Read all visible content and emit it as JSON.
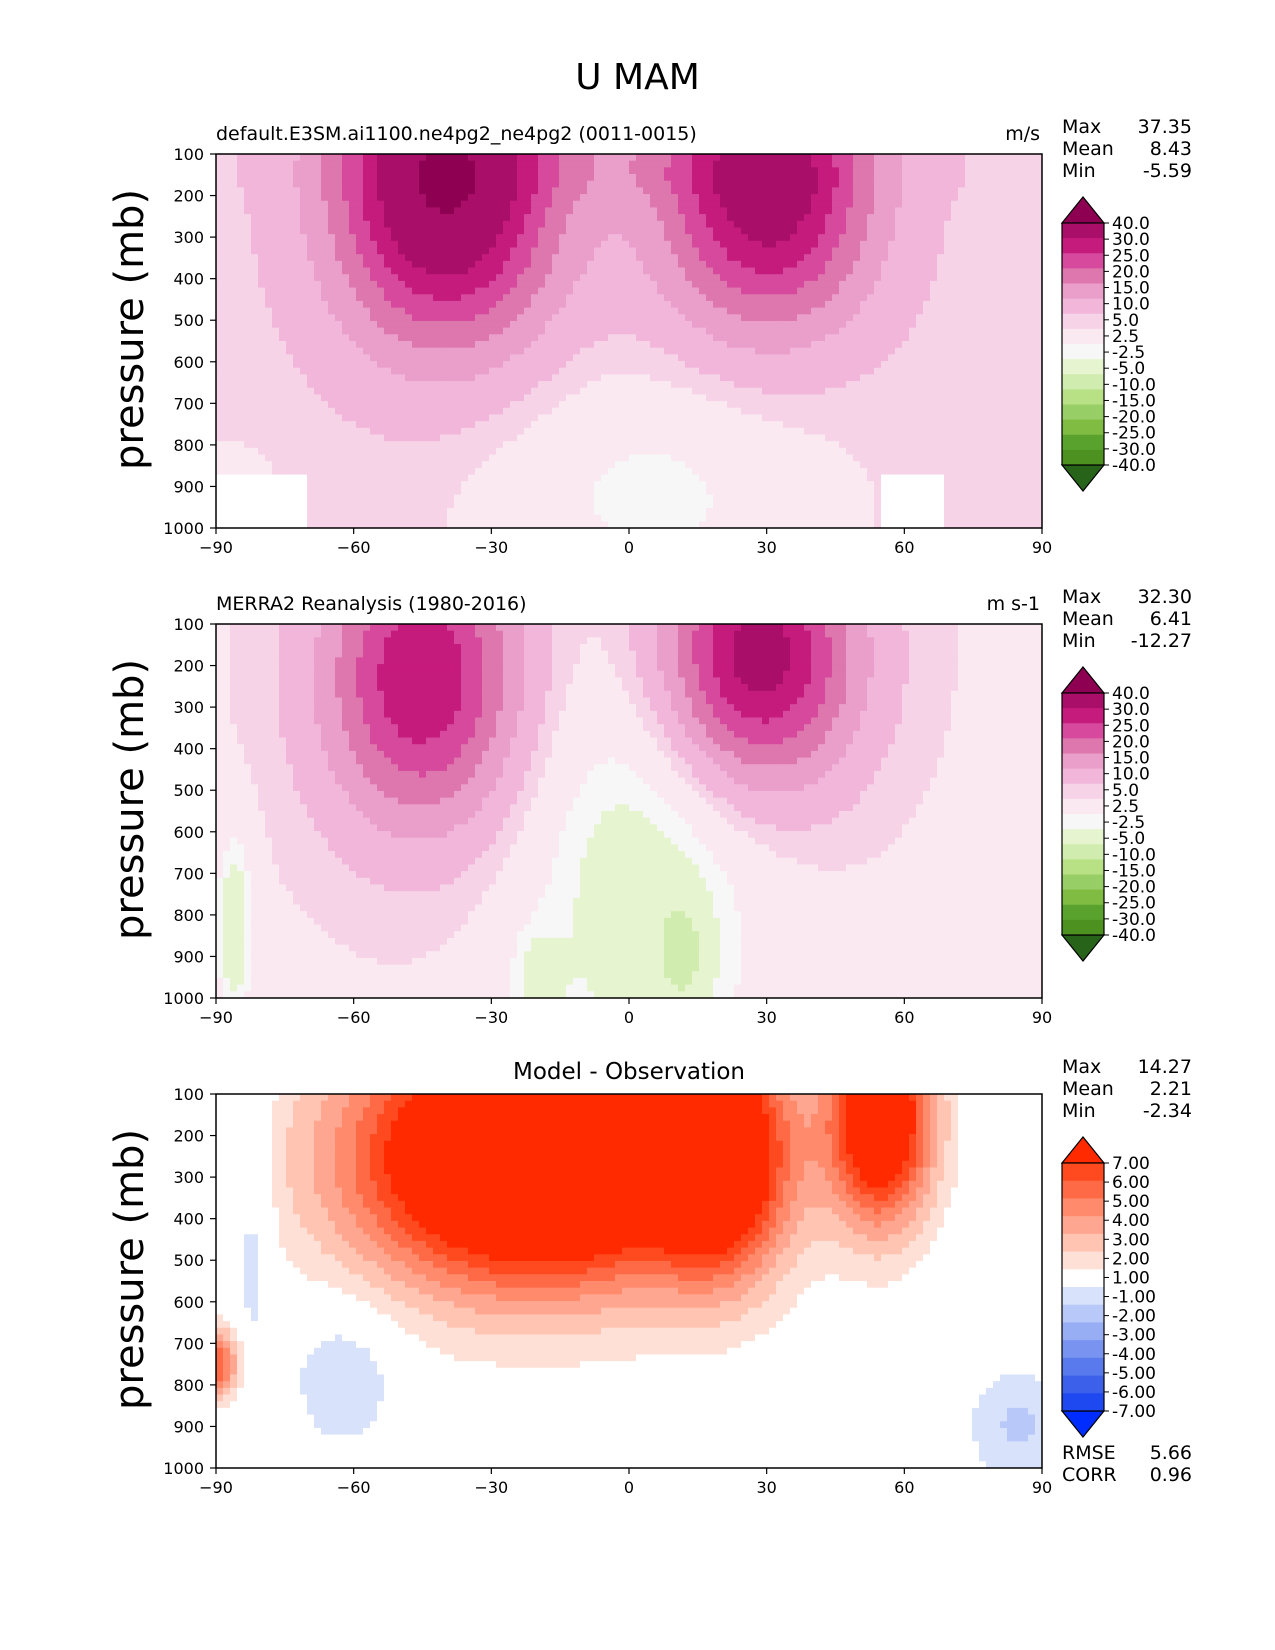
{
  "figure": {
    "title": "U MAM"
  },
  "chart_data": [
    {
      "type": "contour",
      "title_left": "default.E3SM.ai1100.ne4pg2_ne4pg2 (0011-0015)",
      "title_center": "",
      "title_right": "m/s",
      "ylabel": "pressure (mb)",
      "x_ticks": [
        "−90",
        "−60",
        "−30",
        "0",
        "30",
        "60",
        "90"
      ],
      "y_ticks": [
        "100",
        "200",
        "300",
        "400",
        "500",
        "600",
        "700",
        "800",
        "900",
        "1000"
      ],
      "xlim": [
        -90,
        90
      ],
      "ylim": [
        1000,
        100
      ],
      "stats": [
        {
          "label": "Max",
          "value": "37.35"
        },
        {
          "label": "Mean",
          "value": "8.43"
        },
        {
          "label": "Min",
          "value": "-5.59"
        }
      ],
      "colorbar": {
        "labels": [
          "40.0",
          "30.0",
          "25.0",
          "20.0",
          "15.0",
          "10.0",
          "5.0",
          "2.5",
          "-2.5",
          "-5.0",
          "-10.0",
          "-15.0",
          "-20.0",
          "-25.0",
          "-30.0",
          "-40.0"
        ],
        "colors": [
          "#8e0152",
          "#a90f68",
          "#c51b7d",
          "#d6499c",
          "#de77ae",
          "#ea9fcb",
          "#f1b6da",
          "#f7d3e8",
          "#fbe9f2",
          "#f7f7f7",
          "#e6f5d0",
          "#d0ecae",
          "#b8e186",
          "#97ce66",
          "#7fbc41",
          "#5aa22e",
          "#4d9221",
          "#276419"
        ]
      },
      "features": [
        {
          "lat": -40,
          "p": 190,
          "value": 37.35
        },
        {
          "lat": 30,
          "p": 190,
          "value": 31
        }
      ]
    },
    {
      "type": "contour",
      "title_left": "MERRA2 Reanalysis (1980-2016)",
      "title_center": "",
      "title_right": "m s-1",
      "ylabel": "pressure (mb)",
      "x_ticks": [
        "−90",
        "−60",
        "−30",
        "0",
        "30",
        "60",
        "90"
      ],
      "y_ticks": [
        "100",
        "200",
        "300",
        "400",
        "500",
        "600",
        "700",
        "800",
        "900",
        "1000"
      ],
      "xlim": [
        -90,
        90
      ],
      "ylim": [
        1000,
        100
      ],
      "stats": [
        {
          "label": "Max",
          "value": "32.30"
        },
        {
          "label": "Mean",
          "value": "6.41"
        },
        {
          "label": "Min",
          "value": "-12.27"
        }
      ],
      "colorbar": {
        "labels": [
          "40.0",
          "30.0",
          "25.0",
          "20.0",
          "15.0",
          "10.0",
          "5.0",
          "2.5",
          "-2.5",
          "-5.0",
          "-10.0",
          "-15.0",
          "-20.0",
          "-25.0",
          "-30.0",
          "-40.0"
        ],
        "colors": [
          "#8e0152",
          "#a90f68",
          "#c51b7d",
          "#d6499c",
          "#de77ae",
          "#ea9fcb",
          "#f1b6da",
          "#f7d3e8",
          "#fbe9f2",
          "#f7f7f7",
          "#e6f5d0",
          "#d0ecae",
          "#b8e186",
          "#97ce66",
          "#7fbc41",
          "#5aa22e",
          "#4d9221",
          "#276419"
        ]
      },
      "features": [
        {
          "lat": -45,
          "p": 230,
          "value": 28
        },
        {
          "lat": 30,
          "p": 180,
          "value": 32.3
        }
      ]
    },
    {
      "type": "contour",
      "title_left": "",
      "title_center": "Model - Observation",
      "title_right": "",
      "ylabel": "pressure (mb)",
      "x_ticks": [
        "−90",
        "−60",
        "−30",
        "0",
        "30",
        "60",
        "90"
      ],
      "y_ticks": [
        "100",
        "200",
        "300",
        "400",
        "500",
        "600",
        "700",
        "800",
        "900",
        "1000"
      ],
      "xlim": [
        -90,
        90
      ],
      "ylim": [
        1000,
        100
      ],
      "stats": [
        {
          "label": "Max",
          "value": "14.27"
        },
        {
          "label": "Mean",
          "value": "2.21"
        },
        {
          "label": "Min",
          "value": "-2.34"
        }
      ],
      "extra_stats": [
        {
          "label": "RMSE",
          "value": "5.66"
        },
        {
          "label": "CORR",
          "value": "0.96"
        }
      ],
      "colorbar": {
        "labels": [
          "7.00",
          "6.00",
          "5.00",
          "4.00",
          "3.00",
          "2.00",
          "1.00",
          "-1.00",
          "-2.00",
          "-3.00",
          "-4.00",
          "-5.00",
          "-6.00",
          "-7.00"
        ],
        "colors": [
          "#ff2a00",
          "#ff4a20",
          "#ff6a46",
          "#ff8a6c",
          "#ffa690",
          "#ffc4b2",
          "#ffe0d6",
          "#ffffff",
          "#d8e2fb",
          "#b8c8f8",
          "#98aef4",
          "#7894f0",
          "#587aec",
          "#3c60ea",
          "#1e48f0",
          "#002dff"
        ]
      },
      "features": [
        {
          "lat": -20,
          "p": 250,
          "value": 14.27
        },
        {
          "lat": -60,
          "p": 750,
          "value": -2.34
        }
      ]
    }
  ]
}
